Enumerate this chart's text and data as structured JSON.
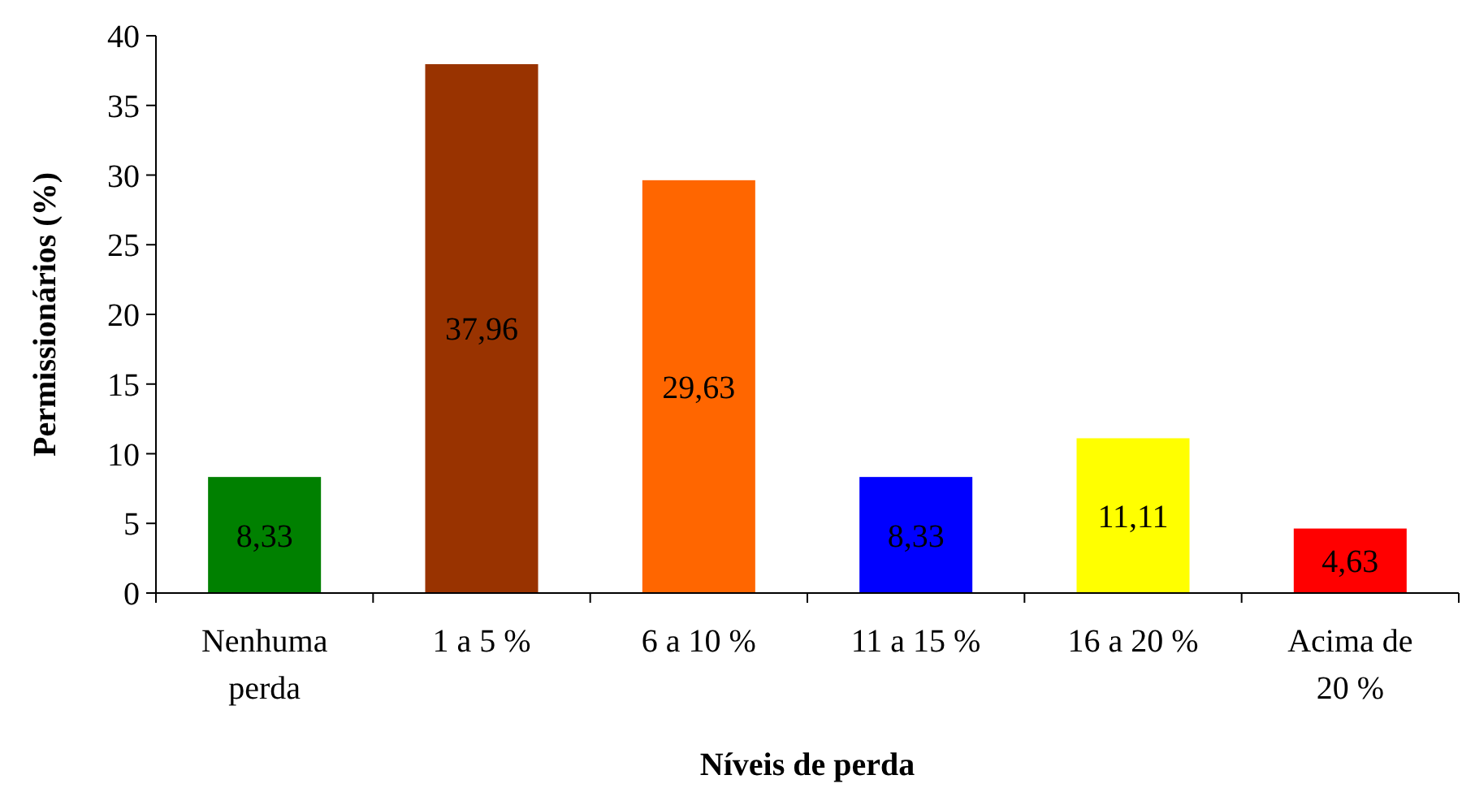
{
  "chart_data": {
    "type": "bar",
    "xlabel": "Níveis de perda",
    "ylabel": "Permissionários (%)",
    "categories": [
      "Nenhuma perda",
      "1 a 5 %",
      "6 a 10 %",
      "11 a 15 %",
      "16 a 20 %",
      "Acima de 20 %"
    ],
    "values": [
      8.33,
      37.96,
      29.63,
      8.33,
      11.11,
      4.63
    ],
    "colors": [
      "#008000",
      "#993300",
      "#ff6600",
      "#0000ff",
      "#ffff00",
      "#ff0000"
    ],
    "value_labels": [
      "8,33",
      "37,96",
      "29,63",
      "8,33",
      "11,11",
      "4,63"
    ],
    "ylim": [
      0,
      40
    ],
    "yticks": [
      0,
      5,
      10,
      15,
      20,
      25,
      30,
      35,
      40
    ],
    "grid": false
  }
}
